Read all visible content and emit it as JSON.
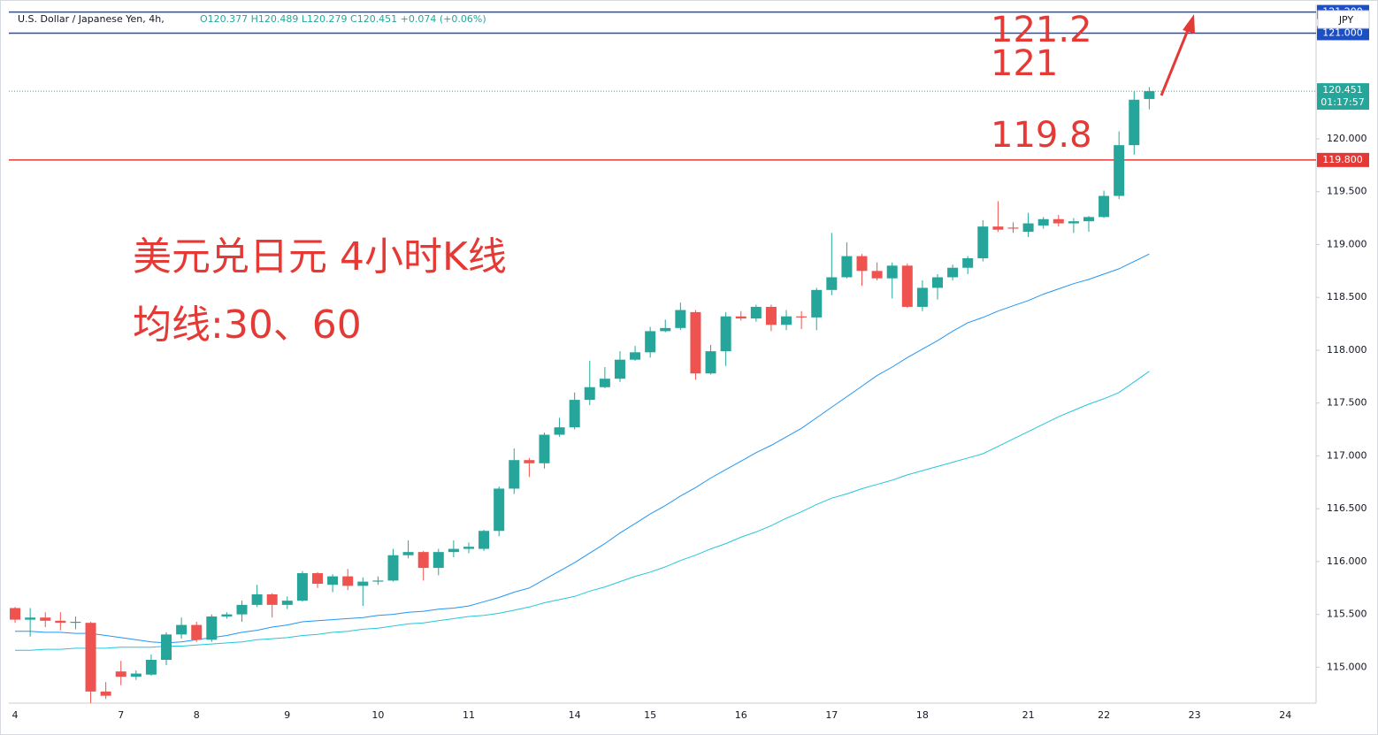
{
  "chart_data": {
    "type": "candlestick",
    "title": "U.S. Dollar / Japanese Yen, 4h,",
    "subtitle": "O120.377 H120.489 L120.279 C120.451 +0.074 (+0.06%)",
    "categories": [
      "4",
      null,
      null,
      null,
      null,
      null,
      null,
      "7",
      null,
      null,
      null,
      null,
      "8",
      null,
      null,
      null,
      null,
      null,
      "9",
      null,
      null,
      null,
      null,
      null,
      "10",
      null,
      null,
      null,
      null,
      null,
      "11",
      null,
      null,
      null,
      null,
      null,
      null,
      "14",
      null,
      null,
      null,
      null,
      "15",
      null,
      null,
      null,
      null,
      null,
      "16",
      null,
      null,
      null,
      null,
      null,
      "17",
      null,
      null,
      null,
      null,
      null,
      "18",
      null,
      null,
      null,
      null,
      null,
      null,
      "21",
      null,
      null,
      null,
      null,
      "22",
      null,
      null,
      null,
      null,
      null,
      "23",
      null,
      null,
      null,
      null,
      null,
      "24",
      null,
      null
    ],
    "open": [
      115.56,
      115.45,
      115.47,
      115.44,
      115.42,
      115.42,
      114.77,
      114.96,
      114.91,
      114.93,
      115.07,
      115.31,
      115.4,
      115.26,
      115.48,
      115.5,
      115.59,
      115.69,
      115.59,
      115.63,
      115.89,
      115.78,
      115.86,
      115.77,
      115.81,
      115.82,
      116.06,
      116.09,
      115.94,
      116.09,
      116.12,
      116.12,
      116.29,
      116.69,
      116.96,
      116.93,
      117.2,
      117.27,
      117.53,
      117.65,
      117.73,
      117.91,
      117.98,
      118.18,
      118.21,
      118.36,
      117.78,
      117.99,
      118.32,
      118.3,
      118.41,
      118.24,
      118.32,
      118.31,
      118.57,
      118.69,
      118.89,
      118.75,
      118.68,
      118.8,
      118.41,
      118.59,
      118.69,
      118.78,
      118.87,
      119.17,
      119.16,
      119.12,
      119.18,
      119.24,
      119.2,
      119.22,
      119.26,
      119.46,
      119.94,
      120.377,
      null,
      null,
      null,
      null,
      null,
      null,
      null,
      null,
      null,
      null,
      null
    ],
    "high": [
      115.57,
      115.56,
      115.52,
      115.52,
      115.48,
      115.43,
      114.86,
      115.06,
      114.97,
      115.12,
      115.33,
      115.47,
      115.43,
      115.5,
      115.52,
      115.63,
      115.78,
      115.7,
      115.67,
      115.91,
      115.9,
      115.88,
      115.93,
      115.85,
      115.86,
      116.12,
      116.2,
      116.1,
      116.12,
      116.2,
      116.18,
      116.3,
      116.71,
      117.07,
      116.98,
      117.22,
      117.36,
      117.6,
      117.9,
      117.84,
      117.99,
      118.04,
      118.22,
      118.29,
      118.45,
      118.38,
      118.05,
      118.36,
      118.37,
      118.43,
      118.43,
      118.38,
      118.37,
      118.59,
      119.11,
      119.02,
      118.91,
      118.83,
      118.83,
      118.82,
      118.66,
      118.72,
      118.81,
      118.89,
      119.23,
      119.41,
      119.21,
      119.3,
      119.26,
      119.28,
      119.25,
      119.27,
      119.51,
      120.07,
      120.45,
      120.489,
      null,
      null,
      null,
      null,
      null,
      null,
      null,
      null,
      null,
      null,
      null
    ],
    "low": [
      115.42,
      115.29,
      115.38,
      115.35,
      115.36,
      114.66,
      114.7,
      114.83,
      114.88,
      114.92,
      115.02,
      115.27,
      115.24,
      115.24,
      115.46,
      115.43,
      115.57,
      115.47,
      115.55,
      115.62,
      115.75,
      115.71,
      115.73,
      115.58,
      115.78,
      115.81,
      116.03,
      115.82,
      115.87,
      116.04,
      116.08,
      116.1,
      116.24,
      116.64,
      116.8,
      116.88,
      117.18,
      117.25,
      117.48,
      117.64,
      117.7,
      117.9,
      117.93,
      118.17,
      118.19,
      117.72,
      117.77,
      117.85,
      118.28,
      118.27,
      118.18,
      118.19,
      118.2,
      118.19,
      118.52,
      118.68,
      118.61,
      118.66,
      118.49,
      118.4,
      118.37,
      118.48,
      118.66,
      118.72,
      118.84,
      119.12,
      119.11,
      119.07,
      119.15,
      119.17,
      119.11,
      119.12,
      119.25,
      119.43,
      119.85,
      120.279,
      null,
      null,
      null,
      null,
      null,
      null,
      null,
      null,
      null,
      null,
      null
    ],
    "close": [
      115.45,
      115.47,
      115.44,
      115.42,
      115.43,
      114.77,
      114.73,
      114.91,
      114.94,
      115.07,
      115.31,
      115.4,
      115.26,
      115.48,
      115.5,
      115.59,
      115.69,
      115.59,
      115.63,
      115.89,
      115.79,
      115.86,
      115.77,
      115.81,
      115.82,
      116.06,
      116.09,
      115.94,
      116.09,
      116.12,
      116.14,
      116.29,
      116.69,
      116.96,
      116.93,
      117.2,
      117.27,
      117.53,
      117.65,
      117.73,
      117.91,
      117.98,
      118.18,
      118.21,
      118.38,
      117.78,
      117.99,
      118.32,
      118.3,
      118.41,
      118.24,
      118.32,
      118.31,
      118.57,
      118.69,
      118.89,
      118.75,
      118.68,
      118.8,
      118.41,
      118.59,
      118.69,
      118.78,
      118.87,
      119.17,
      119.14,
      119.15,
      119.2,
      119.24,
      119.2,
      119.22,
      119.26,
      119.46,
      119.94,
      120.37,
      120.451,
      null,
      null,
      null,
      null,
      null,
      null,
      null,
      null,
      null,
      null,
      null
    ],
    "up_color": "#26a69a",
    "down_color": "#ef5350",
    "series": [
      {
        "color": "#2196f3",
        "values": [
          115.34,
          115.34,
          115.33,
          115.33,
          115.32,
          115.32,
          115.3,
          115.28,
          115.26,
          115.24,
          115.23,
          115.24,
          115.26,
          115.28,
          115.3,
          115.33,
          115.35,
          115.38,
          115.4,
          115.43,
          115.44,
          115.45,
          115.46,
          115.47,
          115.49,
          115.5,
          115.52,
          115.53,
          115.55,
          115.56,
          115.58,
          115.62,
          115.66,
          115.71,
          115.75,
          115.83,
          115.91,
          115.99,
          116.08,
          116.17,
          116.27,
          116.36,
          116.45,
          116.53,
          116.62,
          116.7,
          116.79,
          116.87,
          116.95,
          117.03,
          117.1,
          117.18,
          117.26,
          117.36,
          117.46,
          117.56,
          117.66,
          117.76,
          117.84,
          117.93,
          118.01,
          118.09,
          118.18,
          118.26,
          118.31,
          118.37,
          118.42,
          118.47,
          118.53,
          118.58,
          118.63,
          118.67,
          118.72,
          118.77,
          118.84,
          118.91,
          null,
          null,
          null,
          null,
          null,
          null,
          null,
          null,
          null,
          null,
          null
        ]
      },
      {
        "color": "#26c6da",
        "values": [
          115.16,
          115.16,
          115.17,
          115.17,
          115.18,
          115.18,
          115.18,
          115.19,
          115.19,
          115.19,
          115.2,
          115.2,
          115.21,
          115.22,
          115.23,
          115.24,
          115.26,
          115.27,
          115.28,
          115.3,
          115.31,
          115.33,
          115.34,
          115.36,
          115.37,
          115.39,
          115.41,
          115.42,
          115.44,
          115.46,
          115.48,
          115.49,
          115.51,
          115.54,
          115.57,
          115.61,
          115.64,
          115.67,
          115.72,
          115.76,
          115.81,
          115.86,
          115.9,
          115.95,
          116.01,
          116.06,
          116.12,
          116.17,
          116.23,
          116.28,
          116.34,
          116.41,
          116.47,
          116.54,
          116.6,
          116.64,
          116.69,
          116.73,
          116.77,
          116.82,
          116.86,
          116.9,
          116.94,
          116.98,
          117.02,
          117.09,
          117.16,
          117.23,
          117.3,
          117.37,
          117.43,
          117.49,
          117.54,
          117.6,
          117.7,
          117.8,
          null,
          null,
          null,
          null,
          null,
          null,
          null,
          null,
          null,
          null,
          null
        ]
      }
    ],
    "ylim": [
      114.66,
      121.23
    ],
    "yticks": [
      {
        "value": 115,
        "label": "115.000"
      },
      {
        "value": 115.5,
        "label": "115.500"
      },
      {
        "value": 116,
        "label": "116.000"
      },
      {
        "value": 116.5,
        "label": "116.500"
      },
      {
        "value": 117,
        "label": "117.000"
      },
      {
        "value": 117.5,
        "label": "117.500"
      },
      {
        "value": 118,
        "label": "118.000"
      },
      {
        "value": 118.5,
        "label": "118.500"
      },
      {
        "value": 119,
        "label": "119.000"
      },
      {
        "value": 119.5,
        "label": "119.500"
      },
      {
        "value": 120,
        "label": "120.000"
      }
    ],
    "y_axis_unit": "JPY",
    "grid": false,
    "hlines": [
      {
        "value": 121.2,
        "label": "121.200",
        "color": "#1e4fc2"
      },
      {
        "value": 121,
        "label": "121.000",
        "color": "#1e4fc2"
      },
      {
        "value": 119.8,
        "label": "119.800",
        "color": "#e53935"
      }
    ],
    "last_price": {
      "value": 120.451,
      "label": "120.451",
      "countdown": "01:17:57",
      "color": "#26a69a"
    },
    "annotations": [
      "121.2",
      "121",
      "119.8",
      "美元兑日元 4小时K线",
      "均线:30、60"
    ]
  }
}
